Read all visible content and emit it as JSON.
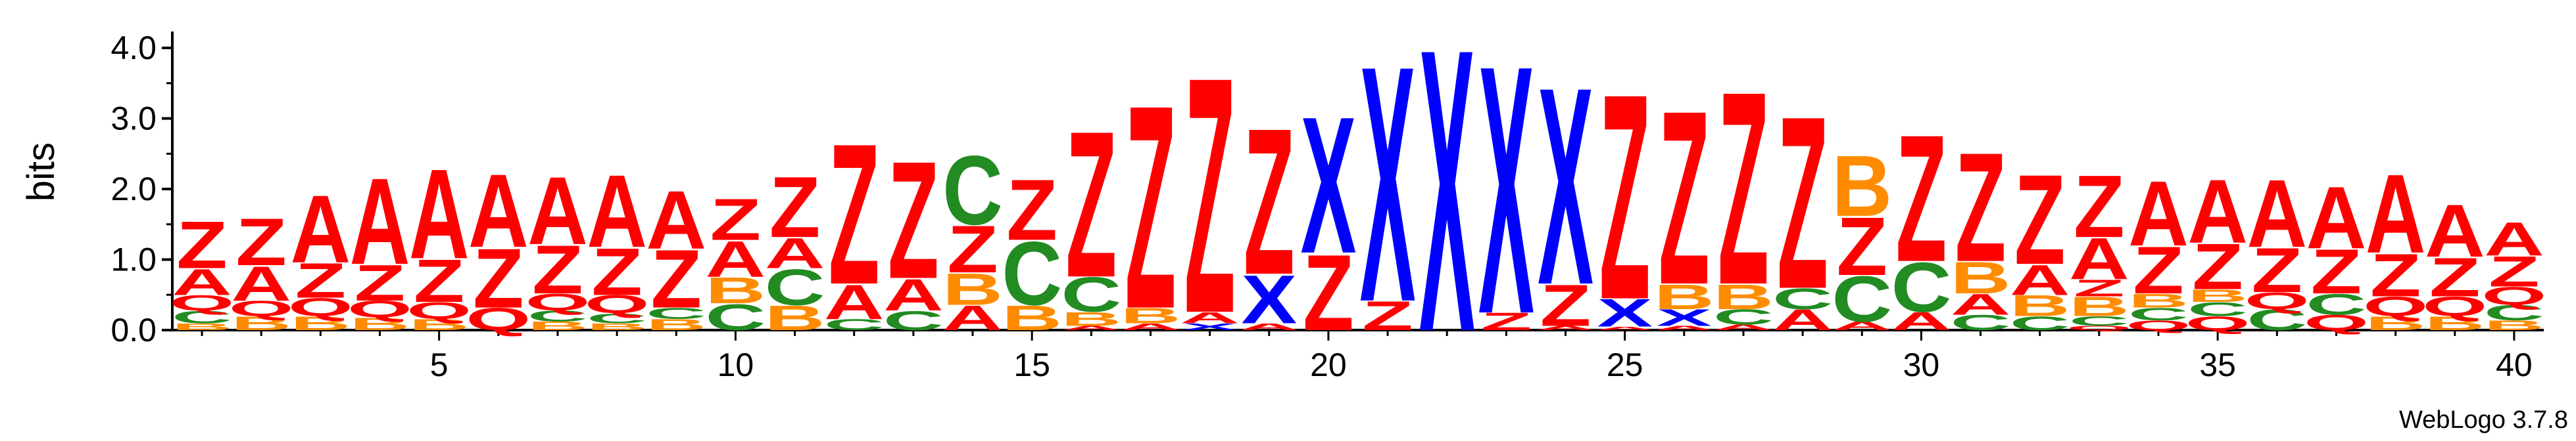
{
  "chart_data": {
    "type": "sequence-logo",
    "ylabel": "bits",
    "ylim": [
      0,
      4.0
    ],
    "yticks": [
      "0.0",
      "1.0",
      "2.0",
      "3.0",
      "4.0"
    ],
    "xticks": [
      "5",
      "10",
      "15",
      "20",
      "25",
      "30",
      "35",
      "40"
    ],
    "credit": "WebLogo 3.7.8",
    "color_scheme": {
      "A": "#ff0000",
      "Z": "#ff0000",
      "Q": "#ff0000",
      "B": "#ff8c00",
      "C": "#228b22",
      "X": "#0000ff"
    },
    "positions": [
      {
        "pos": 1,
        "stack": [
          [
            "B",
            0.1
          ],
          [
            "C",
            0.18
          ],
          [
            "Q",
            0.22
          ],
          [
            "A",
            0.38
          ],
          [
            "Z",
            0.68
          ]
        ]
      },
      {
        "pos": 2,
        "stack": [
          [
            "B",
            0.2
          ],
          [
            "Q",
            0.22
          ],
          [
            "A",
            0.5
          ],
          [
            "Z",
            0.68
          ]
        ]
      },
      {
        "pos": 3,
        "stack": [
          [
            "B",
            0.2
          ],
          [
            "Q",
            0.26
          ],
          [
            "Z",
            0.5
          ],
          [
            "A",
            0.98
          ]
        ]
      },
      {
        "pos": 4,
        "stack": [
          [
            "B",
            0.18
          ],
          [
            "Q",
            0.24
          ],
          [
            "Z",
            0.52
          ],
          [
            "A",
            1.25
          ]
        ]
      },
      {
        "pos": 5,
        "stack": [
          [
            "B",
            0.16
          ],
          [
            "Q",
            0.24
          ],
          [
            "Z",
            0.62
          ],
          [
            "A",
            1.3
          ]
        ]
      },
      {
        "pos": 6,
        "stack": [
          [
            "Q",
            0.32
          ],
          [
            "Z",
            0.86
          ],
          [
            "A",
            1.06
          ]
        ]
      },
      {
        "pos": 7,
        "stack": [
          [
            "B",
            0.12
          ],
          [
            "C",
            0.16
          ],
          [
            "Q",
            0.24
          ],
          [
            "Z",
            0.7
          ],
          [
            "A",
            0.98
          ]
        ]
      },
      {
        "pos": 8,
        "stack": [
          [
            "B",
            0.1
          ],
          [
            "C",
            0.14
          ],
          [
            "Q",
            0.26
          ],
          [
            "Z",
            0.68
          ],
          [
            "A",
            1.05
          ]
        ]
      },
      {
        "pos": 9,
        "stack": [
          [
            "B",
            0.16
          ],
          [
            "C",
            0.16
          ],
          [
            "Z",
            0.84
          ],
          [
            "A",
            0.84
          ]
        ]
      },
      {
        "pos": 10,
        "stack": [
          [
            "C",
            0.38
          ],
          [
            "B",
            0.38
          ],
          [
            "A",
            0.52
          ],
          [
            "Z",
            0.6
          ]
        ]
      },
      {
        "pos": 11,
        "stack": [
          [
            "B",
            0.36
          ],
          [
            "C",
            0.52
          ],
          [
            "A",
            0.44
          ],
          [
            "Z",
            0.88
          ]
        ]
      },
      {
        "pos": 12,
        "stack": [
          [
            "C",
            0.16
          ],
          [
            "A",
            0.5
          ],
          [
            "Z",
            2.04
          ]
        ]
      },
      {
        "pos": 13,
        "stack": [
          [
            "C",
            0.28
          ],
          [
            "A",
            0.46
          ],
          [
            "Z",
            1.7
          ]
        ]
      },
      {
        "pos": 14,
        "stack": [
          [
            "A",
            0.36
          ],
          [
            "B",
            0.46
          ],
          [
            "Z",
            0.68
          ],
          [
            "C",
            1.0
          ]
        ]
      },
      {
        "pos": 15,
        "stack": [
          [
            "B",
            0.36
          ],
          [
            "C",
            0.92
          ],
          [
            "Z",
            0.88
          ]
        ]
      },
      {
        "pos": 16,
        "stack": [
          [
            "A",
            0.06
          ],
          [
            "B",
            0.2
          ],
          [
            "C",
            0.5
          ],
          [
            "Z",
            2.12
          ]
        ]
      },
      {
        "pos": 17,
        "stack": [
          [
            "A",
            0.1
          ],
          [
            "B",
            0.22
          ],
          [
            "Z",
            2.95
          ]
        ]
      },
      {
        "pos": 18,
        "stack": [
          [
            "X",
            0.1
          ],
          [
            "A",
            0.16
          ],
          [
            "Z",
            3.42
          ]
        ]
      },
      {
        "pos": 19,
        "stack": [
          [
            "A",
            0.1
          ],
          [
            "X",
            0.7
          ],
          [
            "Z",
            2.12
          ]
        ]
      },
      {
        "pos": 20,
        "stack": [
          [
            "Z",
            1.1
          ],
          [
            "X",
            1.98
          ]
        ]
      },
      {
        "pos": 21,
        "stack": [
          [
            "Z",
            0.42
          ],
          [
            "X",
            3.42
          ]
        ]
      },
      {
        "pos": 22,
        "stack": [
          [
            "X",
            4.1
          ]
        ]
      },
      {
        "pos": 23,
        "stack": [
          [
            "Z",
            0.25
          ],
          [
            "X",
            3.6
          ]
        ]
      },
      {
        "pos": 24,
        "stack": [
          [
            "A",
            0.06
          ],
          [
            "Z",
            0.6
          ],
          [
            "X",
            2.86
          ]
        ]
      },
      {
        "pos": 25,
        "stack": [
          [
            "A",
            0.05
          ],
          [
            "X",
            0.4
          ],
          [
            "Z",
            2.98
          ]
        ]
      },
      {
        "pos": 26,
        "stack": [
          [
            "A",
            0.06
          ],
          [
            "X",
            0.24
          ],
          [
            "B",
            0.36
          ],
          [
            "Z",
            2.52
          ]
        ]
      },
      {
        "pos": 27,
        "stack": [
          [
            "A",
            0.08
          ],
          [
            "C",
            0.22
          ],
          [
            "B",
            0.36
          ],
          [
            "Z",
            2.8
          ]
        ]
      },
      {
        "pos": 28,
        "stack": [
          [
            "A",
            0.3
          ],
          [
            "C",
            0.3
          ],
          [
            "Z",
            2.5
          ]
        ]
      },
      {
        "pos": 29,
        "stack": [
          [
            "A",
            0.12
          ],
          [
            "C",
            0.66
          ],
          [
            "Z",
            0.84
          ],
          [
            "B",
            0.88
          ]
        ]
      },
      {
        "pos": 30,
        "stack": [
          [
            "A",
            0.26
          ],
          [
            "C",
            0.72
          ],
          [
            "Z",
            1.84
          ]
        ]
      },
      {
        "pos": 31,
        "stack": [
          [
            "C",
            0.22
          ],
          [
            "A",
            0.3
          ],
          [
            "B",
            0.46
          ],
          [
            "Z",
            1.58
          ]
        ]
      },
      {
        "pos": 32,
        "stack": [
          [
            "C",
            0.2
          ],
          [
            "B",
            0.3
          ],
          [
            "A",
            0.44
          ],
          [
            "Z",
            1.3
          ]
        ]
      },
      {
        "pos": 33,
        "stack": [
          [
            "Q",
            0.06
          ],
          [
            "C",
            0.14
          ],
          [
            "B",
            0.28
          ],
          [
            "Z",
            0.24
          ],
          [
            "A",
            0.6
          ],
          [
            "Z",
            0.9
          ]
        ]
      },
      {
        "pos": 34,
        "stack": [
          [
            "Q",
            0.14
          ],
          [
            "C",
            0.18
          ],
          [
            "B",
            0.2
          ],
          [
            "Z",
            0.68
          ],
          [
            "A",
            0.94
          ]
        ]
      },
      {
        "pos": 35,
        "stack": [
          [
            "Q",
            0.2
          ],
          [
            "C",
            0.2
          ],
          [
            "B",
            0.18
          ],
          [
            "Z",
            0.66
          ],
          [
            "A",
            0.92
          ]
        ]
      },
      {
        "pos": 36,
        "stack": [
          [
            "C",
            0.3
          ],
          [
            "Q",
            0.24
          ],
          [
            "Z",
            0.64
          ],
          [
            "A",
            0.98
          ]
        ]
      },
      {
        "pos": 37,
        "stack": [
          [
            "Q",
            0.22
          ],
          [
            "C",
            0.3
          ],
          [
            "Z",
            0.64
          ],
          [
            "A",
            0.9
          ]
        ]
      },
      {
        "pos": 38,
        "stack": [
          [
            "B",
            0.2
          ],
          [
            "Q",
            0.28
          ],
          [
            "Z",
            0.62
          ],
          [
            "A",
            1.14
          ]
        ]
      },
      {
        "pos": 39,
        "stack": [
          [
            "B",
            0.2
          ],
          [
            "Q",
            0.28
          ],
          [
            "Z",
            0.56
          ],
          [
            "A",
            0.76
          ]
        ]
      },
      {
        "pos": 40,
        "stack": [
          [
            "B",
            0.14
          ],
          [
            "C",
            0.22
          ],
          [
            "Q",
            0.26
          ],
          [
            "Z",
            0.44
          ],
          [
            "A",
            0.48
          ]
        ]
      }
    ]
  }
}
